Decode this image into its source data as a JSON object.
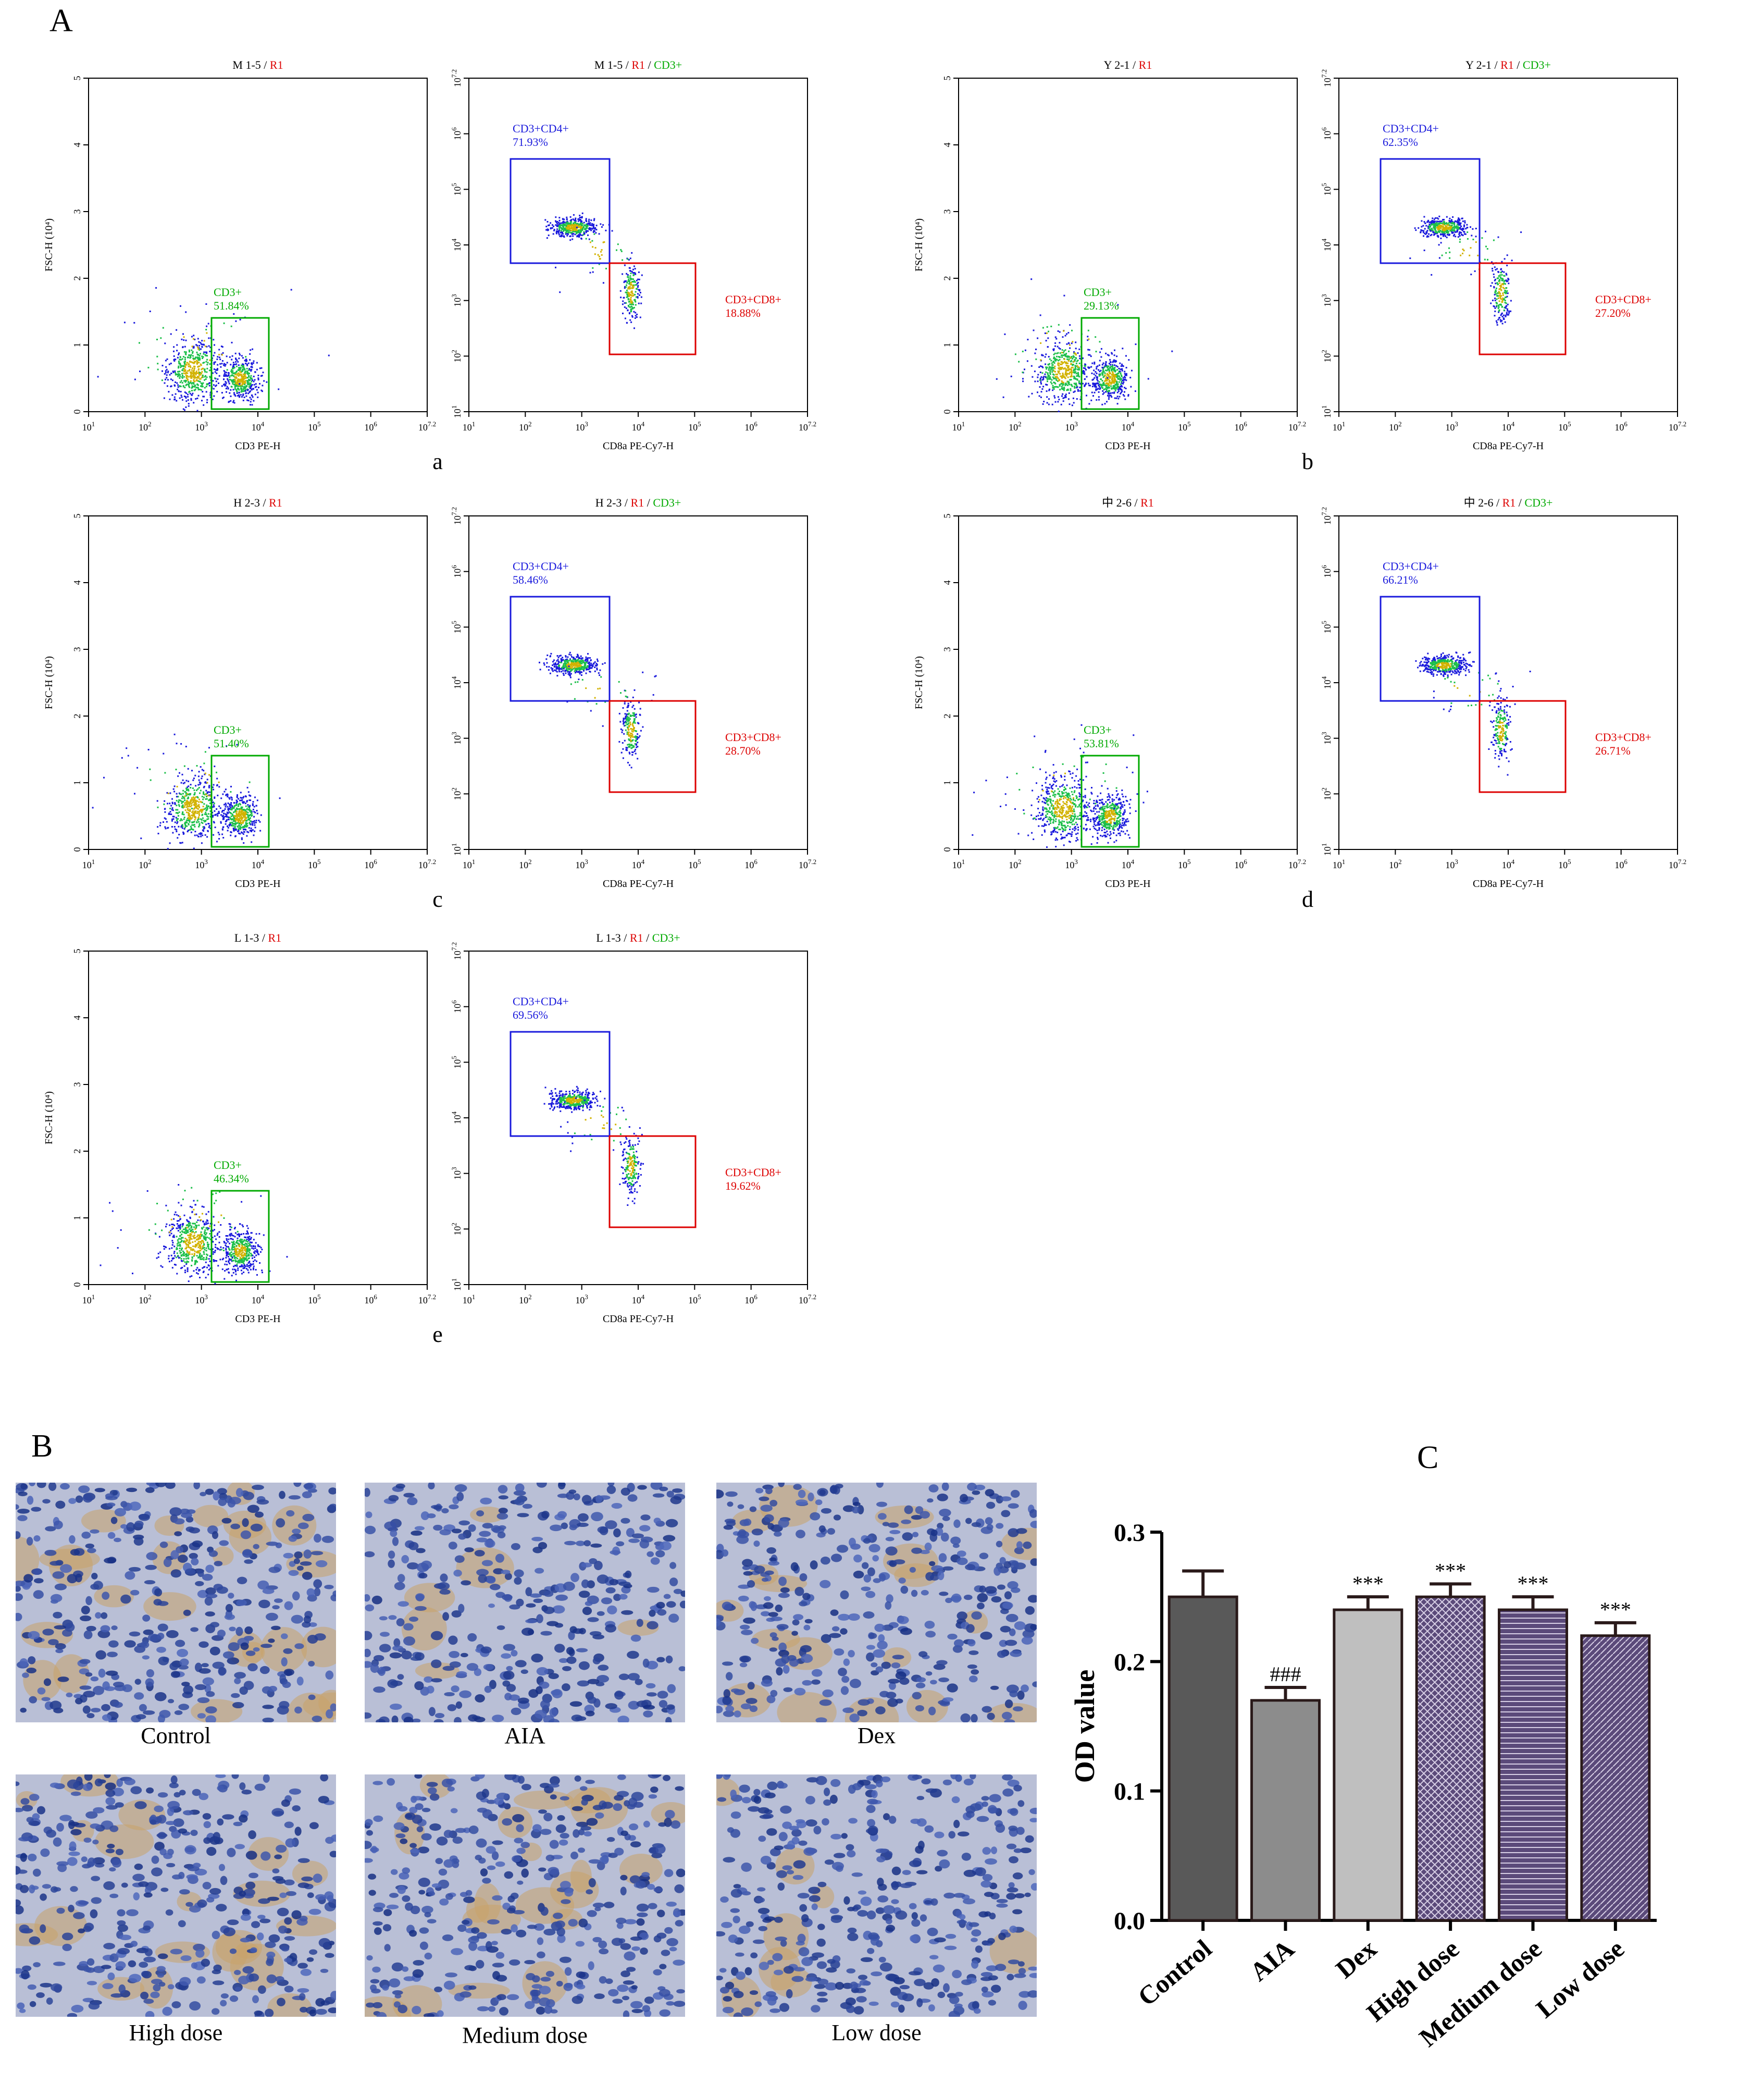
{
  "panels": {
    "A": "A",
    "B": "B",
    "C": "C"
  },
  "flow": {
    "scale": {
      "fsc_ticks": [
        "0",
        "1",
        "2",
        "3",
        "4",
        "5"
      ],
      "log_exps": [
        "1",
        "2",
        "3",
        "4",
        "5",
        "6",
        "7.2"
      ]
    },
    "axis": {
      "fsc": "FSC-H (10⁴)",
      "cd3": "CD3 PE-H",
      "cd8": "CD8a PE-Cy7-H"
    },
    "gates": {
      "cd3": "CD3+",
      "cd4": "CD3+CD4+",
      "cd8": "CD3+CD8+"
    },
    "title_parts": {
      "r1": "R1",
      "cd3": "CD3+"
    },
    "samples": [
      {
        "letter": "a",
        "title": "M 1-5",
        "cd3_pct": "51.84%",
        "cd4_pct": "71.93%",
        "cd8_pct": "18.88%"
      },
      {
        "letter": "b",
        "title": "Y 2-1",
        "cd3_pct": "29.13%",
        "cd4_pct": "62.35%",
        "cd8_pct": "27.20%"
      },
      {
        "letter": "c",
        "title": "H 2-3",
        "cd3_pct": "51.40%",
        "cd4_pct": "58.46%",
        "cd8_pct": "28.70%"
      },
      {
        "letter": "d",
        "title": "中 2-6",
        "cd3_pct": "53.81%",
        "cd4_pct": "66.21%",
        "cd8_pct": "26.71%"
      },
      {
        "letter": "e",
        "title": "L 1-3",
        "cd3_pct": "46.34%",
        "cd4_pct": "69.56%",
        "cd8_pct": "19.62%"
      }
    ]
  },
  "ihc": {
    "captions": [
      "Control",
      "AIA",
      "Dex",
      "High dose",
      "Medium dose",
      "Low dose"
    ]
  },
  "chart_data": {
    "type": "bar",
    "categories": [
      "Control",
      "AIA",
      "Dex",
      "High dose",
      "Medium dose",
      "Low dose"
    ],
    "values": [
      0.25,
      0.17,
      0.24,
      0.25,
      0.24,
      0.22
    ],
    "errors": [
      0.02,
      0.01,
      0.01,
      0.01,
      0.01,
      0.01
    ],
    "annotations": [
      "",
      "###",
      "***",
      "***",
      "***",
      "***"
    ],
    "ylabel": "OD value",
    "ylim": [
      0,
      0.3
    ],
    "yticks": [
      "0.0",
      "0.1",
      "0.2",
      "0.3"
    ],
    "colors": [
      "#595959",
      "#8c8c8c",
      "#bfbfbf",
      "#5b4a7a",
      "#5b4a7a",
      "#5b4a7a"
    ],
    "patterns": [
      "solid",
      "solid",
      "solid",
      "crosshatch",
      "horizontal",
      "diagonal"
    ]
  }
}
